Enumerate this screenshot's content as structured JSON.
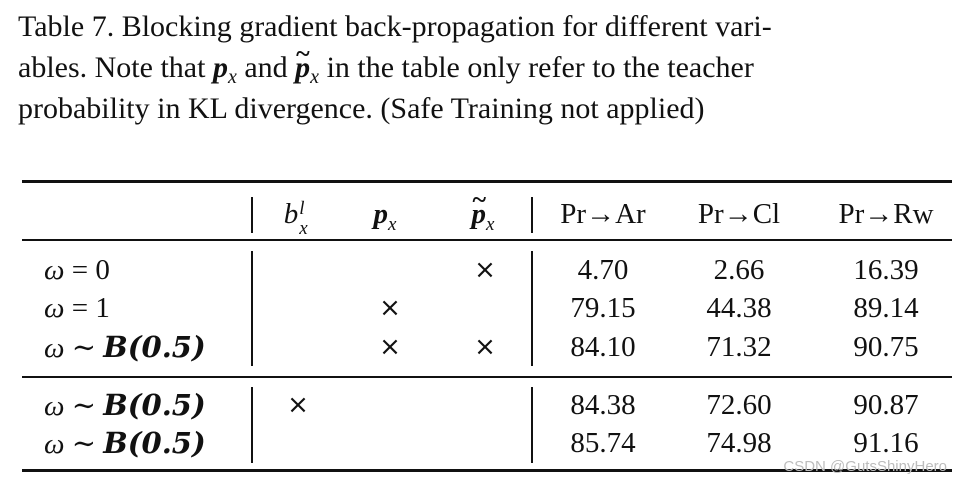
{
  "caption": {
    "line1": "Table 7.  Blocking gradient back-propagation for different vari-",
    "line2_a": "ables.  Note that ",
    "line2_b": " and ",
    "line2_c": " in the table only refer to the teacher",
    "line3": "probability in KL divergence. (Safe Training not applied)"
  },
  "headers": {
    "col1": "b",
    "col1_sup": "l",
    "col1_sub": "x",
    "col2": "p",
    "col2_sub": "x",
    "col3": "p",
    "col3_sub": "x",
    "col4": "Pr→Ar",
    "col5": "Pr→Cl",
    "col6": "Pr→Rw"
  },
  "cross_symbol": "×",
  "rows": [
    {
      "label_a": "ω",
      "label_op": " = ",
      "label_b": "0",
      "b": "",
      "p": "",
      "pt": "×",
      "ar": "4.70",
      "cl": "2.66",
      "rw": "16.39"
    },
    {
      "label_a": "ω",
      "label_op": " = ",
      "label_b": "1",
      "b": "",
      "p": "×",
      "pt": "",
      "ar": "79.15",
      "cl": "44.38",
      "rw": "89.14"
    },
    {
      "label_a": "ω",
      "label_op": " ∼ ",
      "label_b": "B(0.5)",
      "b": "",
      "p": "×",
      "pt": "×",
      "ar": "84.10",
      "cl": "71.32",
      "rw": "90.75"
    },
    {
      "label_a": "ω",
      "label_op": " ∼ ",
      "label_b": "B(0.5)",
      "b": "×",
      "p": "",
      "pt": "",
      "ar": "84.38",
      "cl": "72.60",
      "rw": "90.87"
    },
    {
      "label_a": "ω",
      "label_op": " ∼ ",
      "label_b": "B(0.5)",
      "b": "",
      "p": "",
      "pt": "",
      "ar": "85.74",
      "cl": "74.98",
      "rw": "91.16"
    }
  ],
  "watermark": "CSDN @GutsShinyHero"
}
